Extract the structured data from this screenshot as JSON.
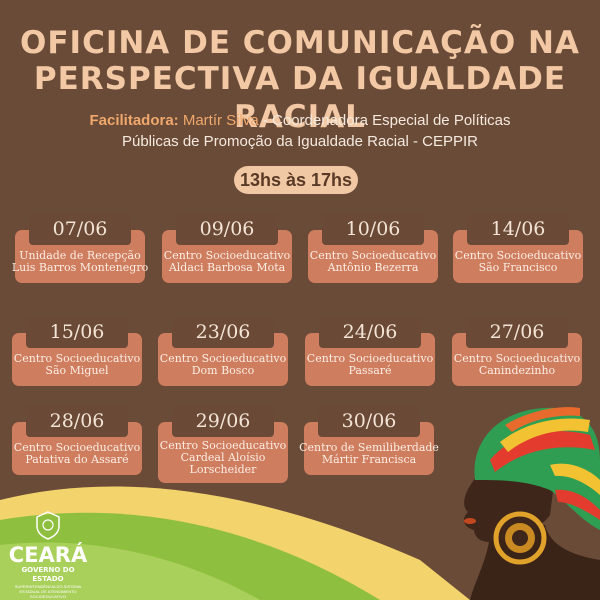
{
  "title_line1": "OFICINA DE COMUNICAÇÃO NA",
  "title_line2": "PERSPECTIVA DA IGUALDADE RACIAL",
  "facilitator": {
    "label": "Facilitadora:",
    "name": "Martír Silva",
    "dash": " - ",
    "role_line1": "Coordenadora Especial de Políticas",
    "role_line2_pre": "Públicas de Promoção da Igualdade Racial - ",
    "acronym": "CEPPIR"
  },
  "time": "13hs às 17hs",
  "sessions": [
    {
      "date": "07/06",
      "l1": "Unidade de Recepção",
      "l2": "Luis Barros Montenegro",
      "l3": ""
    },
    {
      "date": "09/06",
      "l1": "Centro Socioeducativo",
      "l2": "Aldaci Barbosa Mota",
      "l3": ""
    },
    {
      "date": "10/06",
      "l1": "Centro Socioeducativo",
      "l2": "Antônio Bezerra",
      "l3": ""
    },
    {
      "date": "14/06",
      "l1": "Centro Socioeducativo",
      "l2": "São Francisco",
      "l3": ""
    },
    {
      "date": "15/06",
      "l1": "Centro Socioeducativo",
      "l2": "São Miguel",
      "l3": ""
    },
    {
      "date": "23/06",
      "l1": "Centro Socioeducativo",
      "l2": "Dom Bosco",
      "l3": ""
    },
    {
      "date": "24/06",
      "l1": "Centro Socioeducativo",
      "l2": "Passaré",
      "l3": ""
    },
    {
      "date": "27/06",
      "l1": "Centro Socioeducativo",
      "l2": "Canindezinho",
      "l3": ""
    },
    {
      "date": "28/06",
      "l1": "Centro Socioeducativo",
      "l2": "Patativa do Assaré",
      "l3": ""
    },
    {
      "date": "29/06",
      "l1": "Centro Socioeducativo",
      "l2": "Cardeal Aloísio",
      "l3": "Lorscheider"
    },
    {
      "date": "30/06",
      "l1": "Centro de Semiliberdade",
      "l2": "Mártir Francisca",
      "l3": ""
    }
  ],
  "logo": {
    "name": "CEARÁ",
    "gov": "GOVERNO DO ESTADO",
    "small1": "SUPERINTENDÊNCIA DO SISTEMA",
    "small2": "ESTADUAL DE ATENDIMENTO",
    "small3": "SOCIOEDUCATIVO"
  },
  "colors": {
    "background": "#6a4b38",
    "title": "#f2c9a4",
    "accent": "#f0a86c",
    "card": "#cf7d5f",
    "date_box": "#6a4a37",
    "green_wave": "#8fbf3f",
    "yellow_wave": "#f3d36b"
  },
  "icons": [
    "ceara-coat-of-arms-icon",
    "woman-with-headwrap-illustration"
  ]
}
